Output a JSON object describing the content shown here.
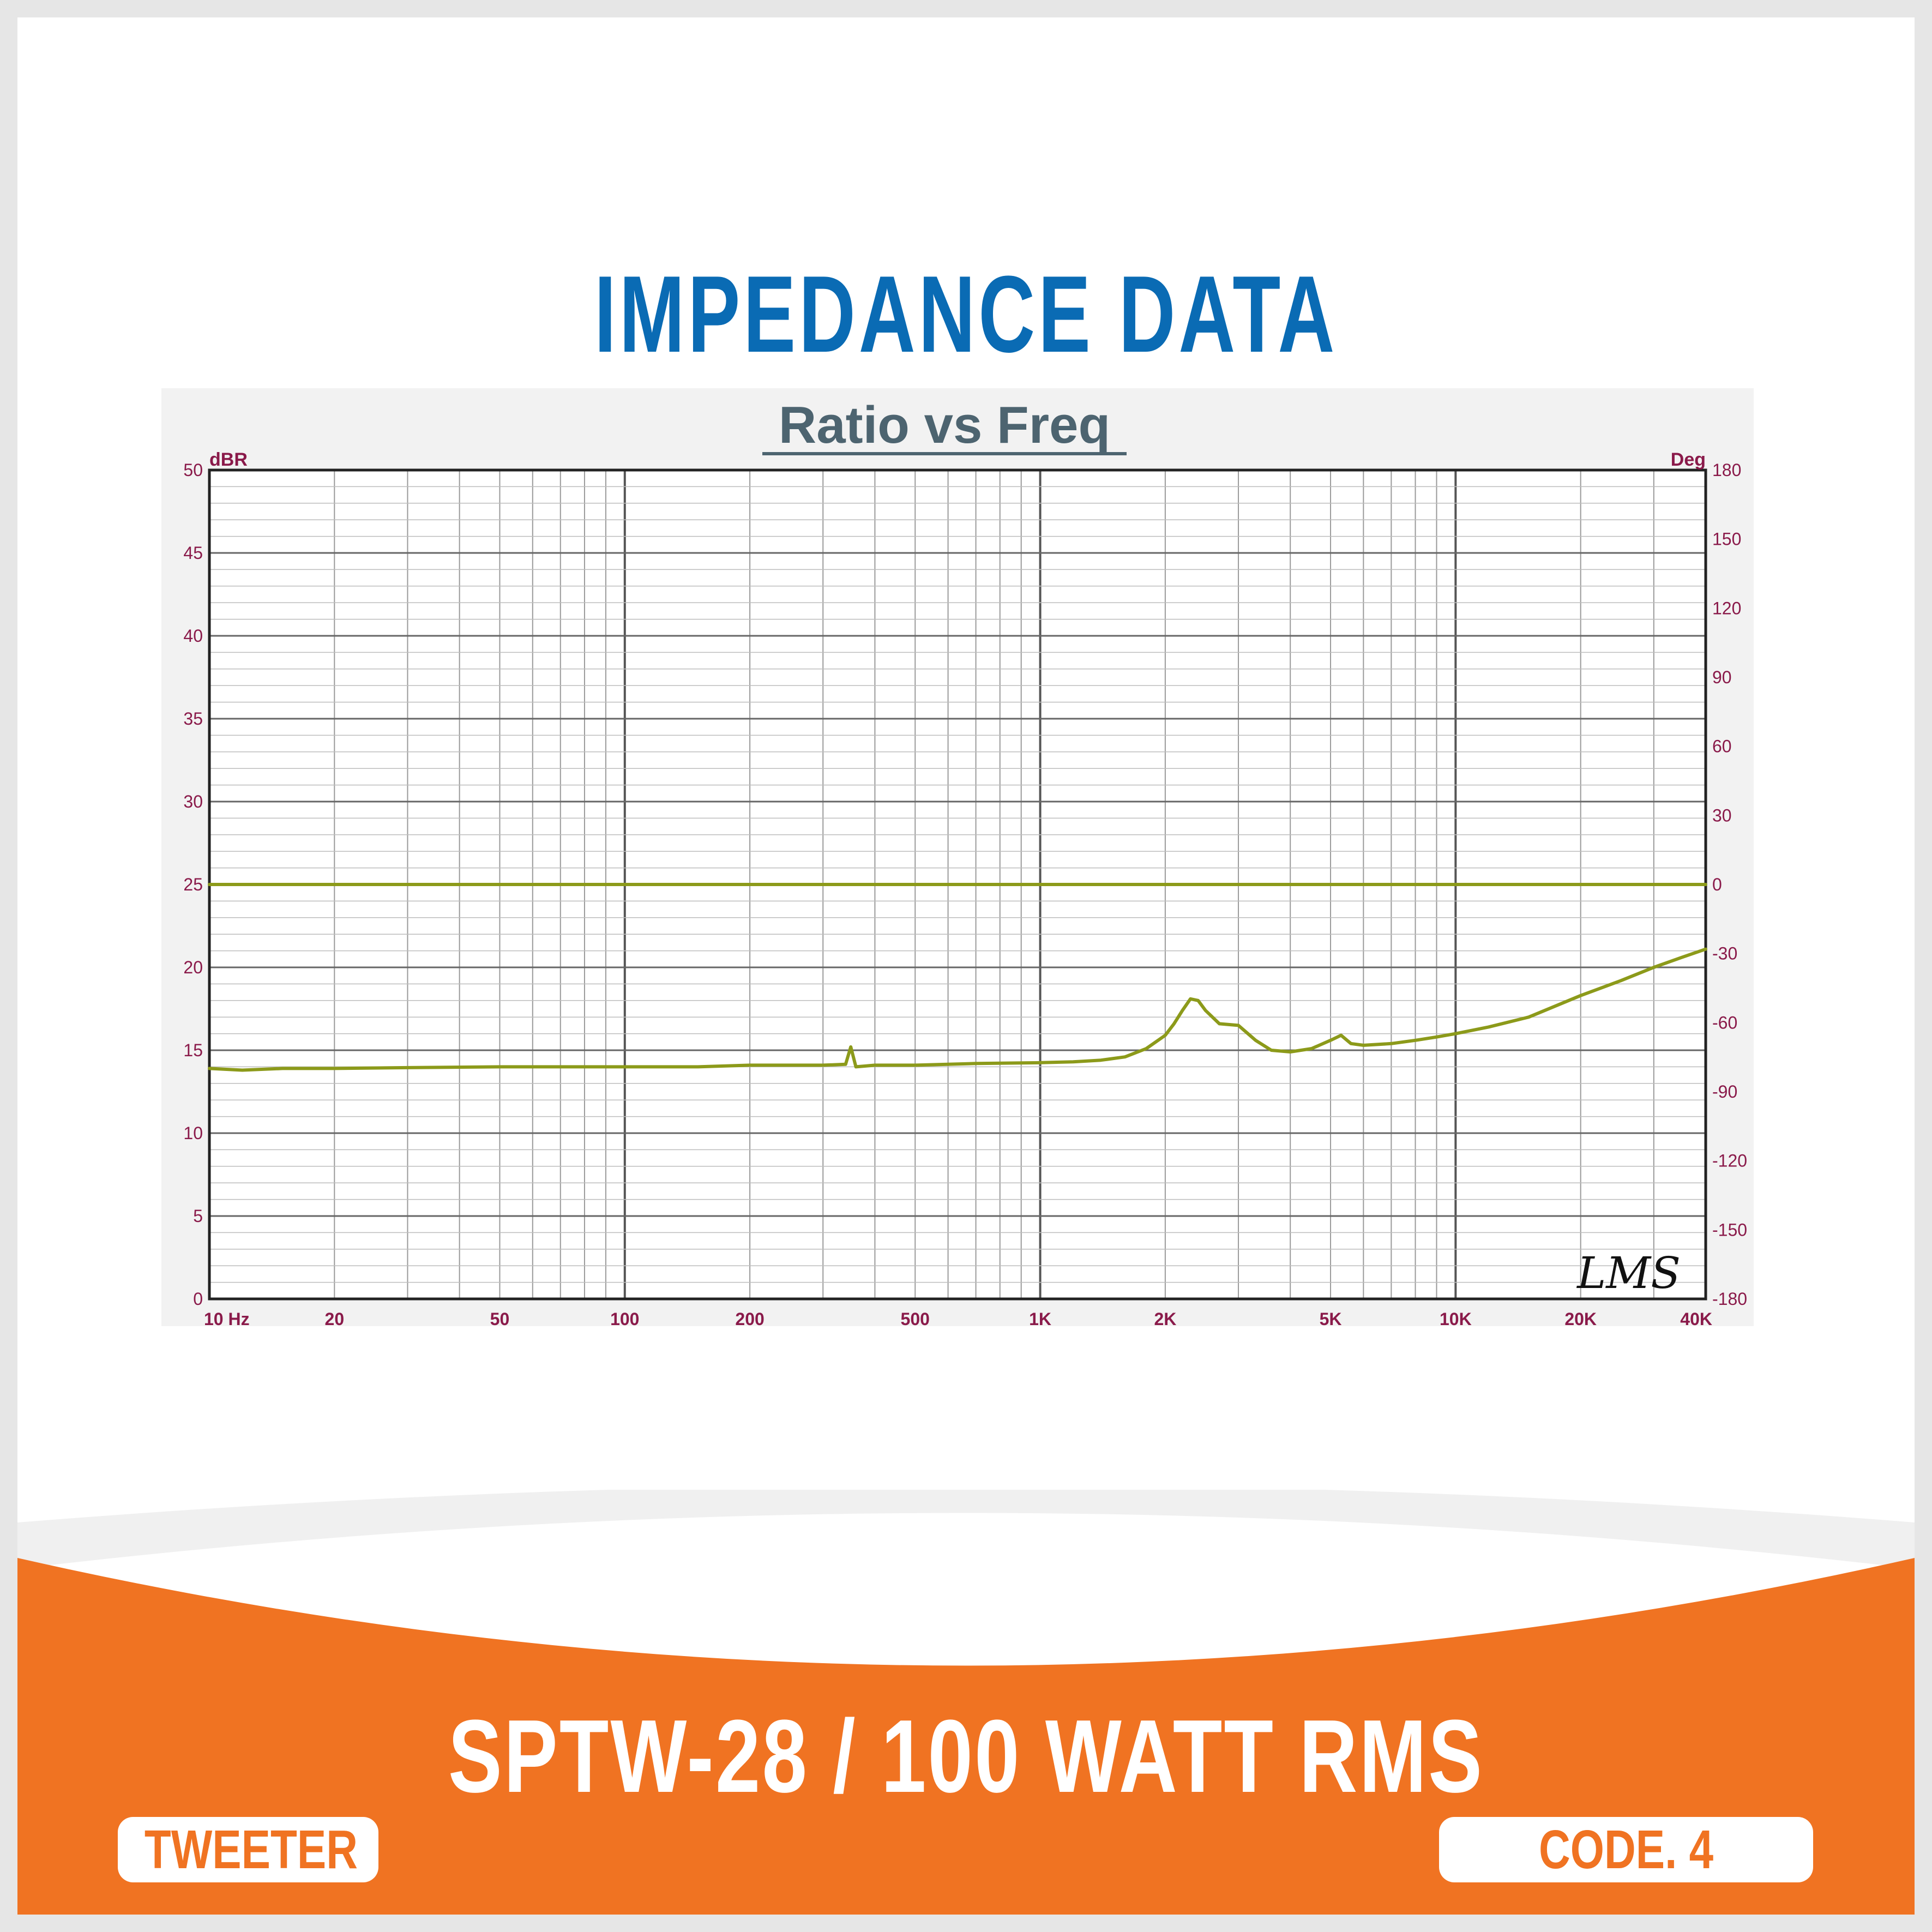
{
  "header": {
    "title": "IMPEDANCE DATA"
  },
  "chart_data": {
    "type": "line",
    "title": "Ratio vs Freq",
    "x_scale": "log",
    "xlim": [
      10,
      40000
    ],
    "x_ticks": [
      {
        "v": 10,
        "label": "10  Hz"
      },
      {
        "v": 20,
        "label": "20"
      },
      {
        "v": 50,
        "label": "50"
      },
      {
        "v": 100,
        "label": "100"
      },
      {
        "v": 200,
        "label": "200"
      },
      {
        "v": 500,
        "label": "500"
      },
      {
        "v": 1000,
        "label": "1K"
      },
      {
        "v": 2000,
        "label": "2K"
      },
      {
        "v": 5000,
        "label": "5K"
      },
      {
        "v": 10000,
        "label": "10K"
      },
      {
        "v": 20000,
        "label": "20K"
      },
      {
        "v": 40000,
        "label": "40K"
      }
    ],
    "ylabel_left": "dBR",
    "ylim_left": [
      0,
      50
    ],
    "y_ticks_left": [
      "0",
      "5",
      "10",
      "15",
      "20",
      "25",
      "30",
      "35",
      "40",
      "45",
      "50"
    ],
    "ylabel_right": "Deg",
    "ylim_right": [
      -180,
      180
    ],
    "y_ticks_right": [
      "-180",
      "-150",
      "-120",
      "-90",
      "-60",
      "-30",
      "0",
      "30",
      "60",
      "90",
      "120",
      "150",
      "180"
    ],
    "grid": true,
    "watermark": "LMS",
    "series": [
      {
        "axis": "left",
        "color": "#8c9a1a",
        "x": [
          10,
          12,
          15,
          20,
          30,
          50,
          100,
          150,
          200,
          300,
          340,
          350,
          360,
          380,
          400,
          500,
          700,
          1000,
          1200,
          1400,
          1600,
          1800,
          2000,
          2100,
          2200,
          2300,
          2400,
          2500,
          2700,
          3000,
          3300,
          3600,
          4000,
          4500,
          5000,
          5300,
          5600,
          6000,
          7000,
          8000,
          9000,
          10000,
          12000,
          15000,
          20000,
          25000,
          30000,
          35000,
          40000
        ],
        "y": [
          13.9,
          13.8,
          13.9,
          13.9,
          13.95,
          14.0,
          14.0,
          14.0,
          14.1,
          14.1,
          14.15,
          15.2,
          14.0,
          14.05,
          14.1,
          14.1,
          14.2,
          14.25,
          14.3,
          14.4,
          14.6,
          15.1,
          15.9,
          16.6,
          17.4,
          18.1,
          18.0,
          17.4,
          16.6,
          16.5,
          15.6,
          15.0,
          14.9,
          15.1,
          15.6,
          15.9,
          15.4,
          15.3,
          15.4,
          15.6,
          15.8,
          16.0,
          16.4,
          17.0,
          18.3,
          19.2,
          20.0,
          20.6,
          21.1
        ]
      },
      {
        "axis": "right",
        "color": "#8c9a1a",
        "x": [
          10,
          40000
        ],
        "y": [
          0,
          0
        ]
      }
    ]
  },
  "footer": {
    "product": "SPTW-28 / 100 WATT RMS",
    "category": "TWEETER",
    "code": "CODE. 4"
  },
  "colors": {
    "brand_blue": "#0a6bb4",
    "brand_orange": "#f07322",
    "trace": "#8c9a1a",
    "axis_label": "#8a1a4a"
  }
}
